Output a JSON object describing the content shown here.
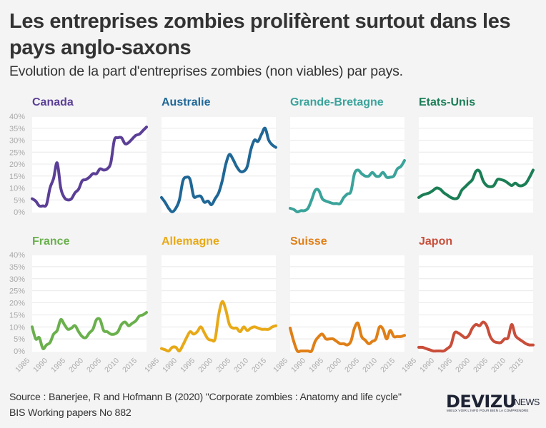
{
  "header": {
    "title": "Les entreprises zombies prolifèrent surtout dans les pays anglo-saxons",
    "subtitle": "Evolution de la part d'entreprises zombies (non viables) par pays."
  },
  "footer": {
    "source_line1": "Source : Banerjee, R and Hofmann B (2020) \"Corporate zombies : Anatomy and life cycle\"",
    "source_line2": "BIS Working papers No 882"
  },
  "logo": {
    "main": "DEVIZU",
    "suffix": ".NEWS",
    "tagline": "MIEUX VOIR L'INFO POUR BIEN LA COMPRENDRE"
  },
  "chart_data": {
    "type": "line",
    "title": "Les entreprises zombies prolifèrent surtout dans les pays anglo-saxons",
    "subtitle": "Evolution de la part d'entreprises zombies (non viables) par pays.",
    "xlabel": "",
    "ylabel": "",
    "x": [
      1985,
      1986,
      1987,
      1988,
      1989,
      1990,
      1991,
      1992,
      1993,
      1994,
      1995,
      1996,
      1997,
      1998,
      1999,
      2000,
      2001,
      2002,
      2003,
      2004,
      2005,
      2006,
      2007,
      2008,
      2009,
      2010,
      2011,
      2012,
      2013,
      2014,
      2015,
      2016,
      2017
    ],
    "x_ticks": [
      1985,
      1990,
      1995,
      2000,
      2005,
      2010,
      2015
    ],
    "x_tick_labels": [
      "1985",
      "1990",
      "1995",
      "2000",
      "2005",
      "2010",
      "2015"
    ],
    "y_ticks": [
      0,
      5,
      10,
      15,
      20,
      25,
      30,
      35,
      40
    ],
    "y_tick_labels": [
      "0%",
      "5%",
      "10%",
      "15%",
      "20%",
      "25%",
      "30%",
      "35%",
      "40%"
    ],
    "ylim": [
      0,
      40
    ],
    "grid": true,
    "legend": "none (panel titles)",
    "layout": "small multiples, 2 rows x 4 columns",
    "series": [
      {
        "name": "Canada",
        "color": "#5b3f96",
        "values": [
          5.5,
          4.5,
          2.5,
          2.5,
          3,
          10,
          14,
          20.5,
          10,
          6,
          5,
          5.5,
          8,
          9.5,
          13,
          13.5,
          14.5,
          16,
          16,
          18,
          17.5,
          18,
          20.5,
          30,
          31,
          31,
          28.5,
          29,
          30.5,
          32,
          32.5,
          34,
          35.5
        ]
      },
      {
        "name": "Australie",
        "color": "#1f6796",
        "values": [
          6,
          4,
          1.5,
          0,
          1.5,
          5,
          13,
          14.5,
          13.5,
          6.5,
          6.5,
          6.5,
          4,
          4.5,
          3,
          5.5,
          8,
          13,
          20,
          24,
          22,
          19,
          17,
          17,
          19,
          26,
          30,
          29.5,
          32.5,
          35,
          30,
          28,
          27
        ]
      },
      {
        "name": "Grande-Bretagne",
        "color": "#3aa39a",
        "values": [
          1.5,
          1,
          0,
          0.5,
          0.5,
          1.5,
          5,
          9,
          9,
          5.5,
          4.5,
          4,
          3.5,
          3.5,
          3.5,
          6,
          7.5,
          8.5,
          16,
          17.5,
          16,
          15,
          15,
          16.5,
          15,
          15,
          16.5,
          14.5,
          14.5,
          15,
          18,
          19,
          21.5
        ]
      },
      {
        "name": "Etats-Unis",
        "color": "#1b7e55",
        "values": [
          6,
          7,
          7.5,
          8,
          9,
          10,
          9.5,
          8,
          7,
          6,
          5.5,
          6,
          9,
          10.5,
          12,
          13.5,
          17,
          17,
          13,
          11,
          10.5,
          11,
          13.5,
          13.5,
          13,
          12,
          11,
          12,
          11,
          11,
          12,
          14.5,
          17.5
        ]
      },
      {
        "name": "France",
        "color": "#6ab04c",
        "values": [
          10,
          5,
          5.5,
          1,
          2.5,
          3.5,
          7,
          8.5,
          13,
          11,
          9,
          9.5,
          10.5,
          8,
          6,
          5.5,
          7.5,
          9,
          13,
          13,
          8.5,
          8,
          7,
          7,
          8,
          11,
          12,
          10.5,
          11.5,
          12.5,
          14.5,
          15,
          16
        ]
      },
      {
        "name": "Allemagne",
        "color": "#e8a917",
        "values": [
          1,
          0.5,
          0,
          1.5,
          1.5,
          0,
          2.5,
          5.5,
          8,
          7,
          8,
          10,
          7.5,
          5,
          4.5,
          5,
          15,
          20.5,
          17,
          11,
          9.5,
          9.5,
          8,
          10,
          8.5,
          9.5,
          10,
          9.5,
          9,
          9,
          9,
          10,
          10.5
        ]
      },
      {
        "name": "Suisse",
        "color": "#e07f16",
        "values": [
          9.5,
          4,
          0,
          0,
          0,
          0,
          0,
          4,
          6,
          7,
          5,
          5,
          5,
          4,
          3,
          3,
          2.5,
          4,
          9.5,
          11.5,
          6,
          4.5,
          3,
          4,
          5,
          10,
          9,
          5,
          8.5,
          6,
          6,
          6,
          6.5
        ]
      },
      {
        "name": "Japon",
        "color": "#c94e3a",
        "values": [
          1.5,
          1.5,
          1,
          0.5,
          0,
          0,
          0,
          0,
          1,
          2.5,
          7.5,
          7.5,
          6.5,
          5.5,
          6.5,
          9.5,
          11,
          10.5,
          12,
          10.5,
          6,
          4,
          3.5,
          3.5,
          5,
          5.5,
          11,
          6.5,
          5,
          4,
          3,
          2.5,
          2.5
        ]
      }
    ]
  }
}
